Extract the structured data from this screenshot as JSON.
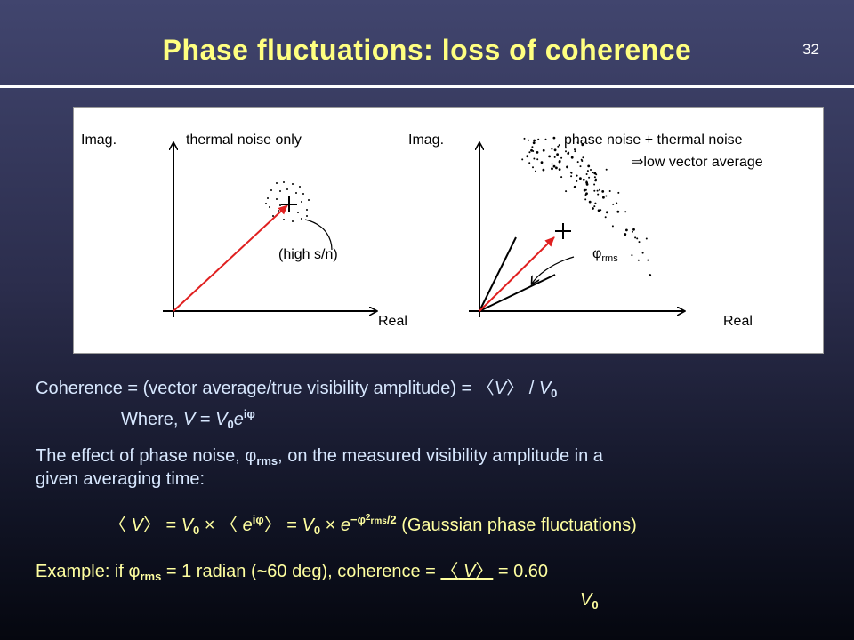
{
  "slide": {
    "title": "Phase fluctuations: loss of coherence",
    "number": "32"
  },
  "figure": {
    "left_panel": {
      "imag_label": "Imag.",
      "title": "thermal noise only",
      "annotation": "(high s/n)",
      "real_label": "Real"
    },
    "right_panel": {
      "imag_label": "Imag.",
      "title": "phase noise + thermal noise",
      "subtitle": "⇒low vector average",
      "phi_symbol": "φ",
      "phi_sub": "rms",
      "real_label": "Real"
    }
  },
  "body": {
    "coherence_def": {
      "lead": "Coherence = (vector average/true visibility amplitude) = ",
      "bracket_open": "〈",
      "v": "V",
      "bracket_close": "〉",
      "slash": " / ",
      "v0": "V",
      "v0_sub": "0"
    },
    "where": {
      "lead": "Where, ",
      "v": "V",
      "eq": " = ",
      "v0": "V",
      "v0_sub": "0",
      "e": "e",
      "exp": "iφ"
    },
    "effect": {
      "part1": "The effect of phase noise, ",
      "phi": "φ",
      "phi_sub": "rms",
      "part2": ", on the measured visibility amplitude in a",
      "line2": "given averaging time:"
    },
    "equation": {
      "bo1": "〈",
      "v": " V",
      "bc1": "〉",
      "eq1": " = ",
      "v0": "V",
      "v0_sub": "0",
      "times1": " × ",
      "bo2": "〈 ",
      "e1": "e",
      "exp1": "iφ",
      "bc2": "〉",
      "eq2": " = ",
      "v0b": "V",
      "v0b_sub": "0",
      "times2": " × ",
      "e2": "e",
      "exp2": "−φ",
      "exp2_sup": "2",
      "exp2_sub": "rms",
      "exp2_tail": "/2",
      "note": " (Gaussian phase fluctuations)"
    },
    "example": {
      "lead": "Example: if ",
      "phi": "φ",
      "phi_sub": "rms",
      "mid": " = 1 radian (~60 deg), coherence = ",
      "bo": "〈",
      "v": " V",
      "bc": "〉",
      "result": " = 0.60",
      "denom": "V",
      "denom_sub": "0"
    }
  }
}
